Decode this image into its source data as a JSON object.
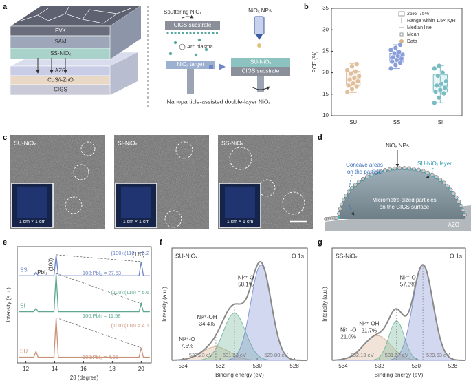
{
  "panel_labels": [
    "a",
    "b",
    "c",
    "d",
    "e",
    "f",
    "g"
  ],
  "panel_a": {
    "layers_top": [
      "PVK",
      "SAM",
      "SS-NiOₓ"
    ],
    "layers_bottom": [
      "AZO",
      "CdS/i-ZnO",
      "CIGS"
    ],
    "sputtering": "Sputtering NiOₓ",
    "substrate_1": "CIGS substrate",
    "plasma": "Ar⁺ plasma",
    "target": "NiOₓ target",
    "nps": "NiOₓ NPs",
    "su_layer": "SU-NiOₓ",
    "substrate_2": "CIGS substrate",
    "caption": "Nanoparticle-assisted double-layer NiOₓ"
  },
  "panel_c": {
    "images": [
      {
        "label": "SU-NiOₓ",
        "inset": "1 cm × 1 cm"
      },
      {
        "label": "SI-NiOₓ",
        "inset": "1 cm × 1 cm"
      },
      {
        "label": "SS-NiOₓ",
        "inset": "1 cm × 1 cm"
      }
    ]
  },
  "panel_d": {
    "nps": "NiOₓ NPs",
    "concave": [
      "Concave areas",
      "on the particle"
    ],
    "layer": "SU-NiOₓ layer",
    "particles": [
      "Micrometre-sized particles",
      "on the CIGS surface"
    ],
    "substrate": "AZO"
  },
  "chart_data": [
    {
      "type": "box",
      "y_label": "PCE (%)",
      "ylim": [
        10,
        35
      ],
      "yticks": [
        10,
        15,
        20,
        25,
        30,
        35
      ],
      "categories": [
        "SU",
        "SS",
        "SI"
      ],
      "legend": [
        "25%–75%",
        "Range within 1.5× IQR",
        "Median line",
        "Mean",
        "Data"
      ],
      "boxes": [
        {
          "color": "#e2bf9c",
          "q1": 17.0,
          "median": 18.6,
          "q3": 20.3,
          "whisker_low": 15.4,
          "whisker_high": 22.1,
          "mean": 18.4,
          "values": [
            15.5,
            16.2,
            16.8,
            17.0,
            17.5,
            18.0,
            18.4,
            18.8,
            19.2,
            19.8,
            20.3,
            20.6,
            21.5,
            22.0
          ]
        },
        {
          "color": "#8a9edb",
          "q1": 22.5,
          "median": 23.5,
          "q3": 24.5,
          "whisker_low": 21.0,
          "whisker_high": 26.5,
          "mean": 23.6,
          "values": [
            21.0,
            21.8,
            22.3,
            22.6,
            23.0,
            23.3,
            23.6,
            23.9,
            24.2,
            24.5,
            24.8,
            25.3,
            25.8,
            26.5
          ]
        },
        {
          "color": "#79bcc2",
          "q1": 15.5,
          "median": 17.0,
          "q3": 19.5,
          "whisker_low": 13.0,
          "whisker_high": 21.6,
          "mean": 17.2,
          "values": [
            13.0,
            14.2,
            15.2,
            15.6,
            16.0,
            16.5,
            17.0,
            17.4,
            18.0,
            19.3,
            20.0,
            21.0,
            21.6
          ]
        }
      ]
    },
    {
      "type": "line",
      "x_label": "2θ (degree)",
      "y_label": "Intensity (a.u.)",
      "xlim": [
        11.4,
        20.7
      ],
      "xticks": [
        12,
        14,
        16,
        18,
        20
      ],
      "ylim": [
        0,
        100
      ],
      "annotations": {
        "peak_100": "(100)",
        "peak_110": "(110)",
        "pbi2": "PbI₂"
      },
      "series": [
        {
          "name": "SU",
          "color": "#c9937a",
          "ratio_labels": [
            "(100):(110) = 4.1",
            "100:PbI₂ = 4.25"
          ],
          "x": [
            11.5,
            12.55,
            12.7,
            12.85,
            13.95,
            14.1,
            14.25,
            19.85,
            20.0,
            20.15,
            20.6
          ],
          "values": [
            5,
            5,
            10,
            5,
            5,
            39,
            5,
            5,
            13,
            5,
            5
          ]
        },
        {
          "name": "SI",
          "color": "#5fa88f",
          "ratio_labels": [
            "(100):(110) = 5.6",
            "100:PbI₂ = 11.58"
          ],
          "x": [
            11.5,
            12.55,
            12.7,
            12.85,
            13.95,
            14.1,
            14.25,
            19.85,
            20.0,
            20.15,
            20.6
          ],
          "values": [
            44,
            44,
            47,
            44,
            44,
            77,
            44,
            44,
            51,
            44,
            44
          ]
        },
        {
          "name": "SS",
          "color": "#6f86c9",
          "ratio_labels": [
            "(100):(110) = 5.2",
            "100:PbI₂ = 27.53"
          ],
          "x": [
            11.5,
            12.55,
            12.7,
            12.85,
            13.95,
            14.1,
            14.25,
            19.85,
            20.0,
            20.15,
            20.6
          ],
          "values": [
            75,
            75,
            78,
            75,
            75,
            93,
            75,
            75,
            87,
            75,
            75
          ]
        }
      ]
    },
    {
      "type": "xps",
      "title": "SU-NiOₓ",
      "subtitle": "O 1s",
      "x_label": "Binding energy (eV)",
      "y_label": "Intensity (a.u.)",
      "xlim": [
        534.6,
        527.3
      ],
      "xticks": [
        534,
        532,
        530,
        528
      ],
      "ylim": [
        0,
        100
      ],
      "series": [
        {
          "name": "Ni³⁺-O",
          "color": "#d8b08f",
          "center": 532.23,
          "center_label": "532.23 eV",
          "height": 12,
          "sigma": 0.75
        },
        {
          "name": "Ni²⁺-OH",
          "color": "#72b59b",
          "center": 531.23,
          "center_label": "531.23 eV",
          "height": 42,
          "sigma": 0.6
        },
        {
          "name": "Ni²⁺-O",
          "color": "#7d8fd0",
          "center": 529.8,
          "center_label": "529.80 eV",
          "height": 85,
          "sigma": 0.55
        }
      ],
      "values": [
        7.5,
        34.4,
        58.1
      ],
      "value_labels": [
        "7.5%",
        "34.4%",
        "58.1%"
      ]
    },
    {
      "type": "xps",
      "title": "SS-NiOₓ",
      "subtitle": "O 1s",
      "x_label": "Binding energy (eV)",
      "y_label": "Intensity (a.u.)",
      "xlim": [
        534.6,
        527.3
      ],
      "xticks": [
        534,
        532,
        530,
        528
      ],
      "ylim": [
        0,
        100
      ],
      "series": [
        {
          "name": "Ni³⁺-O",
          "color": "#d8b08f",
          "center": 532.13,
          "center_label": "532.13 eV",
          "height": 22,
          "sigma": 0.75
        },
        {
          "name": "Ni²⁺-OH",
          "color": "#72b59b",
          "center": 531.07,
          "center_label": "531.07 eV",
          "height": 35,
          "sigma": 0.42
        },
        {
          "name": "Ni²⁺-O",
          "color": "#7d8fd0",
          "center": 529.63,
          "center_label": "529.63 eV",
          "height": 85,
          "sigma": 0.55
        }
      ],
      "values": [
        21.0,
        21.7,
        57.3
      ],
      "value_labels": [
        "21.0%",
        "21.7%",
        "57.3%"
      ]
    }
  ]
}
